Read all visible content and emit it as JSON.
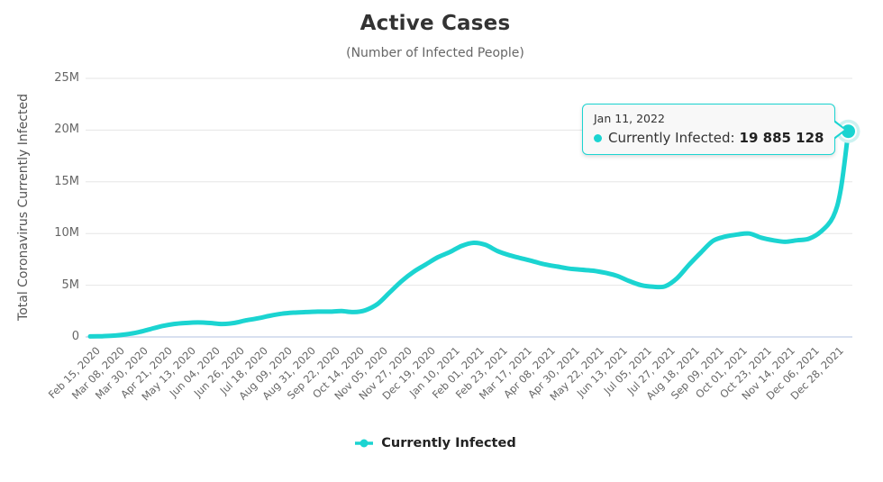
{
  "header": {
    "title": "Active Cases",
    "subtitle": "(Number of Infected People)"
  },
  "y_axis": {
    "title": "Total Coronavirus Currently Infected"
  },
  "tooltip": {
    "date": "Jan 11, 2022",
    "series_label": "Currently Infected:",
    "value": "19 885 128"
  },
  "legend": {
    "label": "Currently Infected"
  },
  "colors": {
    "series": "#1bd4d1",
    "marker_halo": "#cdf2f1",
    "grid": "#e6e6e6",
    "axis_line": "#ccd6eb",
    "tick_text": "#666666",
    "title_text": "#333333",
    "tooltip_bg": "#f8f8f8"
  },
  "chart_data": {
    "type": "line",
    "title": "Active Cases",
    "subtitle": "(Number of Infected People)",
    "xlabel": "",
    "ylabel": "Total Coronavirus Currently Infected",
    "ylim": [
      0,
      25000000
    ],
    "grid": "horizontal",
    "legend_position": "bottom",
    "ytick_labels": [
      "0",
      "5M",
      "10M",
      "15M",
      "20M",
      "25M"
    ],
    "ytick_values_millions": [
      0,
      5,
      10,
      15,
      20,
      25
    ],
    "xtick_spacing_days": 22,
    "x_unit": "days since Feb 15, 2020",
    "xtick_labels": [
      "Feb 15, 2020",
      "Mar 08, 2020",
      "Mar 30, 2020",
      "Apr 21, 2020",
      "May 13, 2020",
      "Jun 04, 2020",
      "Jun 26, 2020",
      "Jul 18, 2020",
      "Aug 09, 2020",
      "Aug 31, 2020",
      "Sep 22, 2020",
      "Oct 14, 2020",
      "Nov 05, 2020",
      "Nov 27, 2020",
      "Dec 19, 2020",
      "Jan 10, 2021",
      "Feb 01, 2021",
      "Feb 23, 2021",
      "Mar 17, 2021",
      "Apr 08, 2021",
      "Apr 30, 2021",
      "May 22, 2021",
      "Jun 13, 2021",
      "Jul 05, 2021",
      "Jul 27, 2021",
      "Aug 18, 2021",
      "Sep 09, 2021",
      "Oct 01, 2021",
      "Oct 23, 2021",
      "Nov 14, 2021",
      "Dec 06, 2021",
      "Dec 28, 2021"
    ],
    "series": [
      {
        "name": "Currently Infected",
        "color": "#1bd4d1",
        "unit": "millions of people",
        "points": [
          [
            0,
            0.05
          ],
          [
            11,
            0.07
          ],
          [
            22,
            0.13
          ],
          [
            33,
            0.25
          ],
          [
            44,
            0.45
          ],
          [
            55,
            0.75
          ],
          [
            66,
            1.05
          ],
          [
            77,
            1.25
          ],
          [
            88,
            1.35
          ],
          [
            99,
            1.4
          ],
          [
            110,
            1.35
          ],
          [
            121,
            1.25
          ],
          [
            132,
            1.35
          ],
          [
            143,
            1.6
          ],
          [
            154,
            1.8
          ],
          [
            165,
            2.05
          ],
          [
            176,
            2.25
          ],
          [
            187,
            2.35
          ],
          [
            198,
            2.4
          ],
          [
            209,
            2.45
          ],
          [
            220,
            2.45
          ],
          [
            231,
            2.5
          ],
          [
            242,
            2.4
          ],
          [
            253,
            2.6
          ],
          [
            264,
            3.2
          ],
          [
            275,
            4.3
          ],
          [
            286,
            5.4
          ],
          [
            297,
            6.3
          ],
          [
            308,
            7.0
          ],
          [
            319,
            7.7
          ],
          [
            330,
            8.2
          ],
          [
            341,
            8.8
          ],
          [
            352,
            9.1
          ],
          [
            363,
            8.9
          ],
          [
            374,
            8.3
          ],
          [
            385,
            7.9
          ],
          [
            396,
            7.6
          ],
          [
            407,
            7.3
          ],
          [
            418,
            7.0
          ],
          [
            429,
            6.8
          ],
          [
            440,
            6.6
          ],
          [
            451,
            6.5
          ],
          [
            462,
            6.4
          ],
          [
            473,
            6.2
          ],
          [
            484,
            5.9
          ],
          [
            495,
            5.4
          ],
          [
            506,
            5.0
          ],
          [
            517,
            4.85
          ],
          [
            528,
            4.9
          ],
          [
            539,
            5.7
          ],
          [
            550,
            7.0
          ],
          [
            561,
            8.2
          ],
          [
            572,
            9.3
          ],
          [
            583,
            9.7
          ],
          [
            594,
            9.9
          ],
          [
            605,
            10.0
          ],
          [
            616,
            9.6
          ],
          [
            627,
            9.35
          ],
          [
            638,
            9.2
          ],
          [
            649,
            9.35
          ],
          [
            660,
            9.5
          ],
          [
            671,
            10.2
          ],
          [
            682,
            11.6
          ],
          [
            689,
            14.2
          ],
          [
            696,
            19.885128
          ]
        ]
      }
    ],
    "highlight_point": {
      "date": "Jan 11, 2022",
      "day": 696,
      "value": 19885128,
      "value_label": "19 885 128"
    }
  }
}
